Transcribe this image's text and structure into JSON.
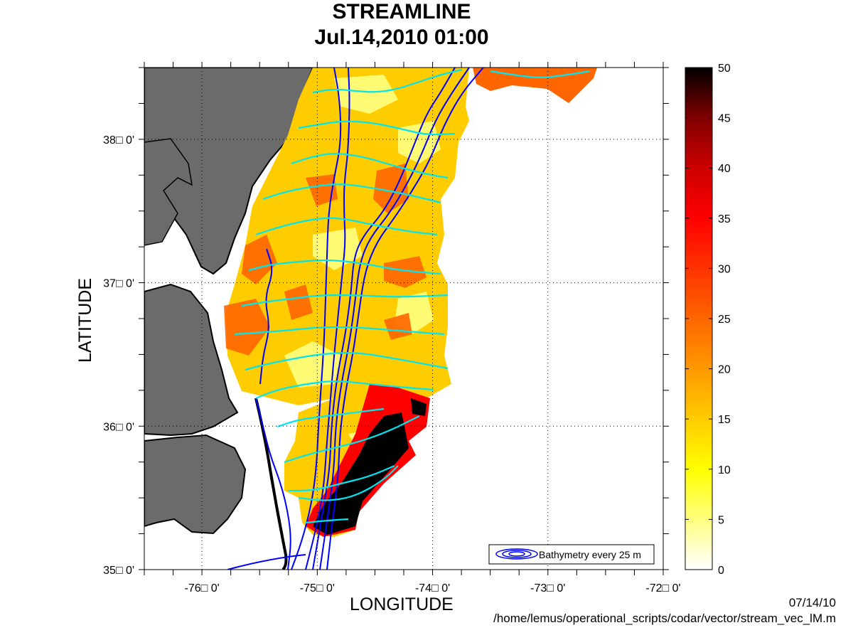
{
  "title": "STREAMLINE",
  "subtitle": "Jul.14,2010 01:00",
  "footer": {
    "date": "07/14/10",
    "path": "/home/lemus/operational_scripts/codar/vector/stream_vec_lM.m"
  },
  "legend": {
    "label": "Bathymetry every 25 m"
  },
  "chart_data": {
    "type": "heatmap",
    "title": "STREAMLINE",
    "subtitle": "Jul.14,2010 01:00",
    "xlabel": "LONGITUDE",
    "ylabel": "LATITUDE",
    "xlim": [
      -76.5,
      -72
    ],
    "ylim": [
      35,
      38.5
    ],
    "grid": true,
    "x_ticks": [
      -76,
      -75,
      -74,
      -73,
      -72
    ],
    "y_ticks": [
      35,
      36,
      37,
      38
    ],
    "x_tick_labels": [
      "-76□ 0'",
      "-75□ 0'",
      "-74□ 0'",
      "-73□ 0'",
      "-72□ 0'"
    ],
    "y_tick_labels": [
      "35□ 0'",
      "36□ 0'",
      "37□ 0'",
      "38□ 0'"
    ],
    "colorbar": {
      "range": [
        0,
        50
      ],
      "ticks": [
        0,
        5,
        10,
        15,
        20,
        25,
        30,
        35,
        40,
        45,
        50
      ],
      "colormap": "hot (reversed)",
      "stops": [
        "#ffffff",
        "#ffff80",
        "#ffff00",
        "#ffcc00",
        "#ff9900",
        "#ff6600",
        "#ff3300",
        "#ff0000",
        "#cc0000",
        "#800000",
        "#000000"
      ]
    },
    "land_color": "#6b6b6b",
    "bathymetry_color": "#0000ff",
    "streamline_color": "#00e5ee"
  }
}
